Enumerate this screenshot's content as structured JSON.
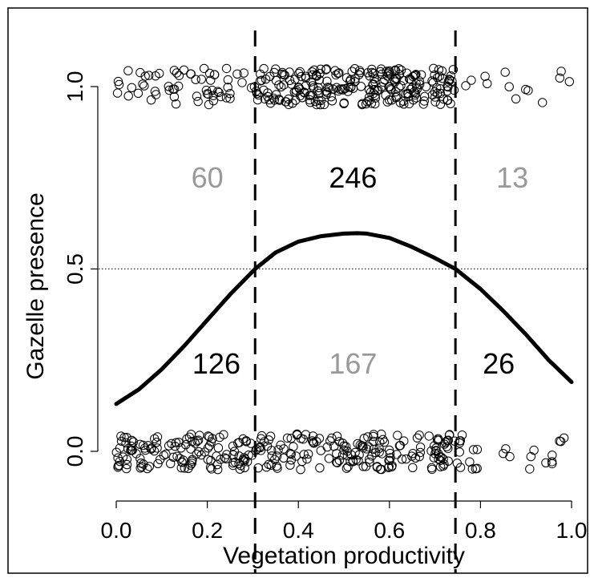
{
  "chart_data": {
    "type": "scatter",
    "title": "",
    "xlabel": "Vegetation productivity",
    "ylabel": "Gazelle presence",
    "xlim": [
      0.0,
      1.0
    ],
    "ylim": [
      0.0,
      1.0
    ],
    "x_ticks": [
      "0.0",
      "0.2",
      "0.4",
      "0.6",
      "0.8",
      "1.0"
    ],
    "y_ticks": [
      "0.0",
      "0.5",
      "1.0"
    ],
    "x_tick_values": [
      0.0,
      0.2,
      0.4,
      0.6,
      0.8,
      1.0
    ],
    "y_tick_values": [
      0.0,
      0.5,
      1.0
    ],
    "reference_line_y": 0.5,
    "thresholds_x": [
      0.305,
      0.745
    ],
    "fitted_curve": {
      "x": [
        0.0,
        0.05,
        0.1,
        0.15,
        0.2,
        0.25,
        0.305,
        0.35,
        0.4,
        0.45,
        0.5,
        0.53,
        0.55,
        0.6,
        0.65,
        0.7,
        0.745,
        0.8,
        0.85,
        0.9,
        0.95,
        1.0
      ],
      "y": [
        0.13,
        0.17,
        0.225,
        0.29,
        0.36,
        0.43,
        0.5,
        0.545,
        0.575,
        0.59,
        0.597,
        0.598,
        0.597,
        0.585,
        0.56,
        0.53,
        0.5,
        0.445,
        0.385,
        0.32,
        0.25,
        0.19
      ]
    },
    "counts": [
      {
        "label": "60",
        "x": 0.2,
        "y": 0.75,
        "color": "#999999"
      },
      {
        "label": "246",
        "x": 0.52,
        "y": 0.75,
        "color": "#000000"
      },
      {
        "label": "13",
        "x": 0.87,
        "y": 0.75,
        "color": "#999999"
      },
      {
        "label": "126",
        "x": 0.22,
        "y": 0.24,
        "color": "#000000"
      },
      {
        "label": "167",
        "x": 0.52,
        "y": 0.24,
        "color": "#999999"
      },
      {
        "label": "26",
        "x": 0.84,
        "y": 0.24,
        "color": "#000000"
      }
    ],
    "presence_groups": [
      {
        "presence": 1,
        "x_min": 0.0,
        "x_max": 0.305,
        "n": 60
      },
      {
        "presence": 1,
        "x_min": 0.305,
        "x_max": 0.745,
        "n": 246
      },
      {
        "presence": 1,
        "x_min": 0.745,
        "x_max": 1.0,
        "n": 13
      },
      {
        "presence": 0,
        "x_min": 0.0,
        "x_max": 0.305,
        "n": 126
      },
      {
        "presence": 0,
        "x_min": 0.305,
        "x_max": 0.745,
        "n": 167
      },
      {
        "presence": 0,
        "x_min": 0.745,
        "x_max": 1.0,
        "n": 26
      }
    ],
    "jitter": 0.05,
    "colors": {
      "points": "#000000",
      "curve": "#000000",
      "gray_count": "#999999",
      "black_count": "#000000"
    }
  }
}
